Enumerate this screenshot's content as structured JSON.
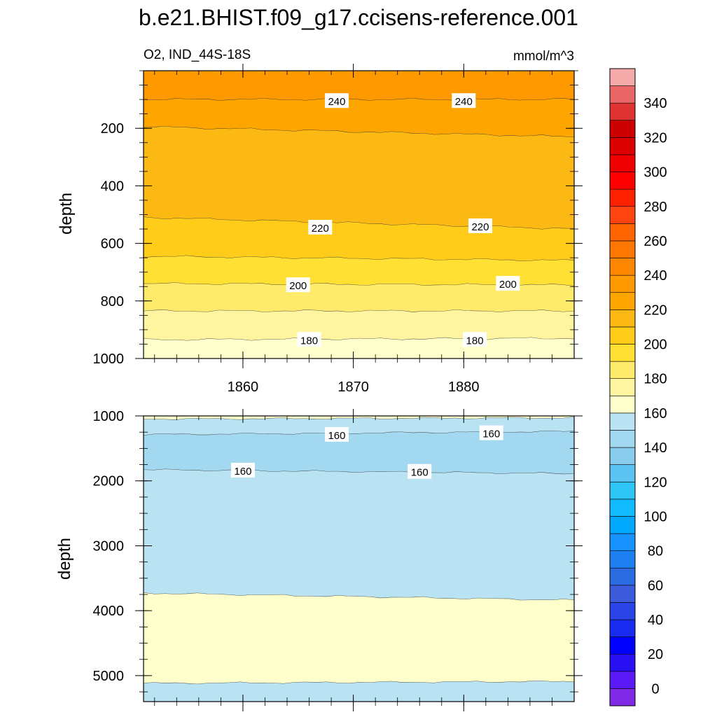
{
  "title": "b.e21.BHIST.f09_g17.ccisens-reference.001",
  "chart_data": {
    "type": "contour",
    "variable_label": "O2, IND_44S-18S",
    "units": "mmol/m^3",
    "xaxis": {
      "range": [
        1851,
        1890
      ],
      "ticks": [
        1860,
        1870,
        1880
      ]
    },
    "upper_panel": {
      "ylabel": "depth",
      "ylim": [
        0,
        1000
      ],
      "yticks": [
        200,
        400,
        600,
        800,
        1000
      ],
      "contour_labels": [
        "240",
        "240",
        "220",
        "220",
        "200",
        "200",
        "180",
        "180"
      ],
      "contour_label_values": [
        {
          "year": 1868.5,
          "depth": 105,
          "value": 240
        },
        {
          "year": 1880,
          "depth": 105,
          "value": 240
        },
        {
          "year": 1867,
          "depth": 545,
          "value": 220
        },
        {
          "year": 1881.5,
          "depth": 540,
          "value": 220
        },
        {
          "year": 1865,
          "depth": 745,
          "value": 200
        },
        {
          "year": 1884,
          "depth": 740,
          "value": 200
        },
        {
          "year": 1866,
          "depth": 935,
          "value": 180
        },
        {
          "year": 1881,
          "depth": 935,
          "value": 180
        }
      ],
      "bands": [
        {
          "value": 245,
          "top": [
            0,
            0
          ],
          "bottom": [
            100,
            100
          ],
          "color": "#FF9900"
        },
        {
          "value": 235,
          "top": [
            100,
            100
          ],
          "bottom": [
            195,
            230
          ],
          "color": "#FFA500"
        },
        {
          "value": 225,
          "top": [
            195,
            230
          ],
          "bottom": [
            510,
            550
          ],
          "color": "#FDB913"
        },
        {
          "value": 215,
          "top": [
            510,
            550
          ],
          "bottom": [
            645,
            660
          ],
          "color": "#FFCC1A"
        },
        {
          "value": 205,
          "top": [
            645,
            660
          ],
          "bottom": [
            740,
            745
          ],
          "color": "#FFE033"
        },
        {
          "value": 195,
          "top": [
            740,
            745
          ],
          "bottom": [
            835,
            835
          ],
          "color": "#FFEB6B"
        },
        {
          "value": 185,
          "top": [
            835,
            835
          ],
          "bottom": [
            935,
            930
          ],
          "color": "#FFF4A0"
        },
        {
          "value": 175,
          "top": [
            935,
            930
          ],
          "bottom": [
            1000,
            1000
          ],
          "color": "#FFFFCC"
        }
      ]
    },
    "lower_panel": {
      "ylabel": "depth",
      "ylim": [
        1000,
        5400
      ],
      "yticks": [
        1000,
        2000,
        3000,
        4000,
        5000
      ],
      "contour_labels": [
        "160",
        "160",
        "160",
        "160"
      ],
      "contour_label_values": [
        {
          "year": 1868.5,
          "depth": 1290,
          "value": 160
        },
        {
          "year": 1882.5,
          "depth": 1265,
          "value": 160
        },
        {
          "year": 1860,
          "depth": 1840,
          "value": 160
        },
        {
          "year": 1876,
          "depth": 1860,
          "value": 160
        }
      ],
      "bands": [
        {
          "value": 175,
          "top": [
            1000,
            1000
          ],
          "bottom": [
            1050,
            1030
          ],
          "color": "#FFFFCC"
        },
        {
          "value": 165,
          "top": [
            1050,
            1030
          ],
          "bottom": [
            1290,
            1240
          ],
          "color": "#B9E2F2"
        },
        {
          "value": 155,
          "top": [
            1290,
            1240
          ],
          "bottom": [
            1830,
            1890
          ],
          "color": "#A3D8F1"
        },
        {
          "value": 165,
          "top": [
            1830,
            1890
          ],
          "bottom": [
            3730,
            3840
          ],
          "color": "#B9E2F2"
        },
        {
          "value": 175,
          "top": [
            3730,
            3840
          ],
          "bottom": [
            5120,
            5090
          ],
          "color": "#FFFFCC"
        },
        {
          "value": 165,
          "top": [
            5120,
            5090
          ],
          "bottom": [
            5400,
            5400
          ],
          "color": "#B9E2F2"
        }
      ]
    },
    "colorbar": {
      "levels": [
        -10,
        0,
        10,
        20,
        30,
        40,
        50,
        60,
        70,
        80,
        90,
        100,
        110,
        120,
        130,
        140,
        150,
        160,
        170,
        180,
        190,
        200,
        210,
        220,
        230,
        240,
        250,
        260,
        270,
        280,
        290,
        300,
        310,
        320,
        330,
        340,
        350,
        360
      ],
      "labels": [
        "0",
        "20",
        "40",
        "60",
        "80",
        "100",
        "120",
        "140",
        "160",
        "180",
        "200",
        "220",
        "240",
        "260",
        "280",
        "300",
        "320",
        "340"
      ],
      "label_values": [
        0,
        20,
        40,
        60,
        80,
        100,
        120,
        140,
        160,
        180,
        200,
        220,
        240,
        260,
        280,
        300,
        320,
        340
      ],
      "colors": [
        "#7F2BE6",
        "#5A1AF5",
        "#2A10F5",
        "#0000FF",
        "#1A2BF0",
        "#2A44E8",
        "#3B5BDB",
        "#2B6BE0",
        "#1E7FF0",
        "#1893FF",
        "#00A8FF",
        "#12BBFF",
        "#2FC5F7",
        "#5CC4F2",
        "#89CCEE",
        "#A3D8F1",
        "#B9E2F2",
        "#FFFFCC",
        "#FFF4A0",
        "#FFEB6B",
        "#FFE033",
        "#FFCC1A",
        "#FDB913",
        "#FFA500",
        "#FF9900",
        "#FF8800",
        "#FF7700",
        "#FF6600",
        "#FF4411",
        "#FF2200",
        "#FF0000",
        "#EE0000",
        "#DD0000",
        "#CC0000",
        "#DD3333",
        "#E86666",
        "#F5AAAA"
      ]
    }
  }
}
